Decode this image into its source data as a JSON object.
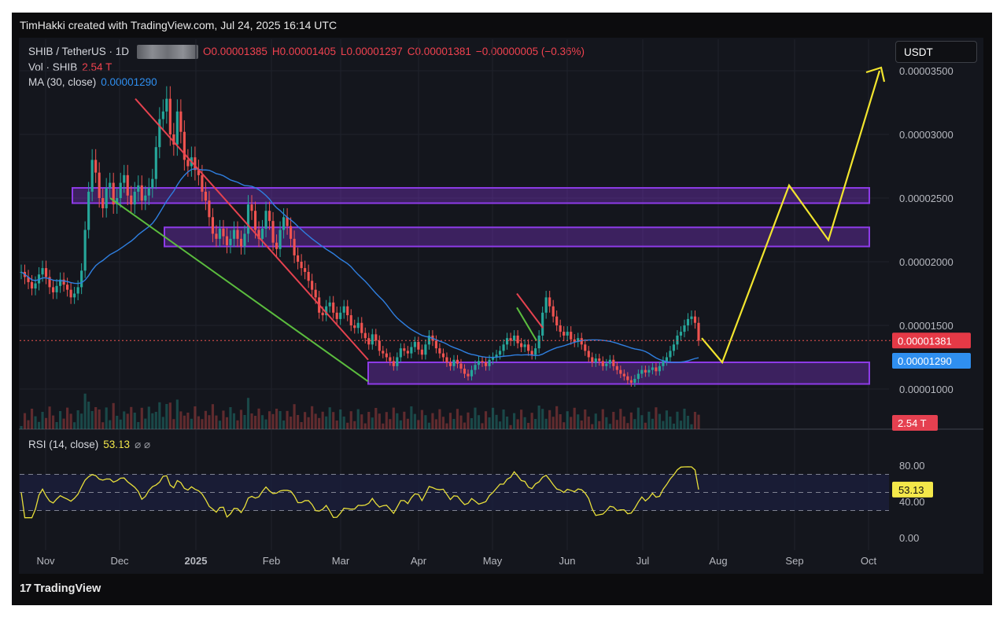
{
  "header": {
    "credit": "TimHakki created with TradingView.com, Jul 24, 2025 16:14 UTC"
  },
  "legend": {
    "symbol": "SHIB / TetherUS · 1D",
    "open": "O0.00001385",
    "high": "H0.00001405",
    "low": "L0.00001297",
    "close": "C0.00001381",
    "change": "−0.00000005 (−0.36%)",
    "vol_label": "Vol · SHIB",
    "vol_value": "2.54 T",
    "ma_label": "MA (30, close)",
    "ma_value": "0.00001290",
    "rsi_label": "RSI (14, close)",
    "rsi_value": "53.13",
    "rsi_icons": "⌀ ⌀"
  },
  "currency": "USDT",
  "footer": {
    "brand": "TradingView",
    "logo": "17"
  },
  "colors": {
    "up": "#26a69a",
    "down": "#ef5350",
    "ma": "#2f7fe0",
    "zone": "#8e3be8",
    "red_trend": "#e5424f",
    "green_trend": "#5bbd3e",
    "projection": "#f2e52e",
    "rsi": "#e8df3a"
  },
  "chart_data": [
    {
      "type": "candlestick",
      "price_axis": {
        "ticks": [
          "0.00003500",
          "0.00003000",
          "0.00002500",
          "0.00002000",
          "0.00001500",
          "0.00001000"
        ],
        "tick_values": [
          3.5e-05,
          3e-05,
          2.5e-05,
          2e-05,
          1.5e-05,
          1e-05
        ]
      },
      "time_axis": {
        "labels": [
          "Nov",
          "Dec",
          "2025",
          "Feb",
          "Mar",
          "Apr",
          "May",
          "Jun",
          "Jul",
          "Aug",
          "Sep",
          "Oct"
        ]
      },
      "last_price": {
        "label": "0.00001381",
        "value": 1.381e-05
      },
      "ma_last": {
        "label": "0.00001290",
        "value": 1.29e-05
      },
      "volume_last": "2.54 T",
      "series_close": [
        1.92e-05,
        1.88e-05,
        1.84e-05,
        1.79e-05,
        1.83e-05,
        1.9e-05,
        1.95e-05,
        1.88e-05,
        1.8e-05,
        1.76e-05,
        1.81e-05,
        1.86e-05,
        1.82e-05,
        1.78e-05,
        1.72e-05,
        1.75e-05,
        1.8e-05,
        1.93e-05,
        2.25e-05,
        2.55e-05,
        2.8e-05,
        2.7e-05,
        2.5e-05,
        2.42e-05,
        2.58e-05,
        2.62e-05,
        2.45e-05,
        2.5e-05,
        2.62e-05,
        2.68e-05,
        2.52e-05,
        2.45e-05,
        2.55e-05,
        2.6e-05,
        2.48e-05,
        2.52e-05,
        2.58e-05,
        2.65e-05,
        2.9e-05,
        3.12e-05,
        3.18e-05,
        3.28e-05,
        3e-05,
        2.92e-05,
        3.18e-05,
        3.02e-05,
        2.8e-05,
        2.75e-05,
        2.82e-05,
        2.72e-05,
        2.68e-05,
        2.55e-05,
        2.48e-05,
        2.35e-05,
        2.22e-05,
        2.18e-05,
        2.26e-05,
        2.2e-05,
        2.13e-05,
        2.18e-05,
        2.25e-05,
        2.18e-05,
        2.12e-05,
        2.22e-05,
        2.45e-05,
        2.4e-05,
        2.25e-05,
        2.18e-05,
        2.26e-05,
        2.4e-05,
        2.32e-05,
        2.15e-05,
        2.1e-05,
        2.25e-05,
        2.35e-05,
        2.28e-05,
        2.18e-05,
        2.05e-05,
        2e-05,
        1.95e-05,
        1.92e-05,
        1.85e-05,
        1.78e-05,
        1.72e-05,
        1.6e-05,
        1.58e-05,
        1.65e-05,
        1.68e-05,
        1.6e-05,
        1.55e-05,
        1.6e-05,
        1.65e-05,
        1.58e-05,
        1.5e-05,
        1.48e-05,
        1.52e-05,
        1.44e-05,
        1.4e-05,
        1.35e-05,
        1.43e-05,
        1.38e-05,
        1.3e-05,
        1.28e-05,
        1.25e-05,
        1.22e-05,
        1.18e-05,
        1.25e-05,
        1.32e-05,
        1.3e-05,
        1.28e-05,
        1.33e-05,
        1.37e-05,
        1.31e-05,
        1.27e-05,
        1.35e-05,
        1.42e-05,
        1.38e-05,
        1.32e-05,
        1.28e-05,
        1.25e-05,
        1.21e-05,
        1.18e-05,
        1.23e-05,
        1.2e-05,
        1.16e-05,
        1.12e-05,
        1.1e-05,
        1.15e-05,
        1.19e-05,
        1.22e-05,
        1.21e-05,
        1.18e-05,
        1.23e-05,
        1.25e-05,
        1.27e-05,
        1.3e-05,
        1.35e-05,
        1.4e-05,
        1.38e-05,
        1.42e-05,
        1.36e-05,
        1.33e-05,
        1.35e-05,
        1.3e-05,
        1.27e-05,
        1.32e-05,
        1.42e-05,
        1.6e-05,
        1.72e-05,
        1.65e-05,
        1.57e-05,
        1.5e-05,
        1.45e-05,
        1.42e-05,
        1.45e-05,
        1.39e-05,
        1.37e-05,
        1.4e-05,
        1.35e-05,
        1.3e-05,
        1.25e-05,
        1.21e-05,
        1.24e-05,
        1.22e-05,
        1.18e-05,
        1.2e-05,
        1.23e-05,
        1.18e-05,
        1.15e-05,
        1.12e-05,
        1.1e-05,
        1.07e-05,
        1.05e-05,
        1.08e-05,
        1.12e-05,
        1.15e-05,
        1.13e-05,
        1.15e-05,
        1.17e-05,
        1.14e-05,
        1.18e-05,
        1.22e-05,
        1.25e-05,
        1.3e-05,
        1.35e-05,
        1.42e-05,
        1.45e-05,
        1.5e-05,
        1.55e-05,
        1.57e-05,
        1.52e-05,
        1.38e-05
      ]
    },
    {
      "type": "line",
      "name": "RSI (14, close)",
      "y_axis": {
        "ticks": [
          "80.00",
          "40.00",
          "0.00"
        ],
        "tick_values": [
          80,
          40,
          0
        ]
      },
      "bands": [
        70,
        50,
        30
      ],
      "last": {
        "label": "53.13",
        "value": 53.13
      }
    }
  ]
}
